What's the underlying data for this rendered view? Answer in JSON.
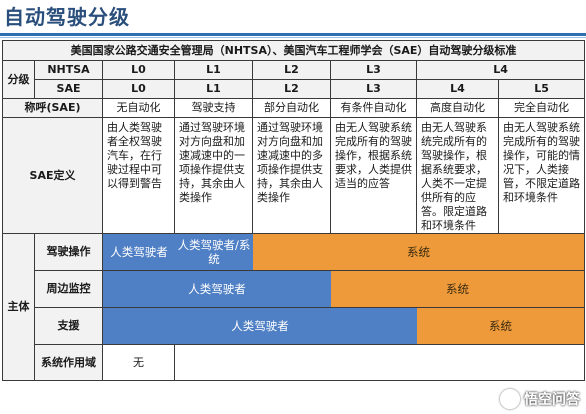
{
  "page": {
    "title": "自动驾驶分级"
  },
  "table": {
    "caption": "美国国家公路交通安全管理局（NHTSA）、美国汽车工程师学会（SAE）自动驾驶分级标准",
    "classification_label": "分级",
    "nhtsa_label": "NHTSA",
    "sae_label": "SAE",
    "nhtsa_levels": [
      "L0",
      "L1",
      "L2",
      "L3",
      "L4"
    ],
    "sae_levels": [
      "L0",
      "L1",
      "L2",
      "L3",
      "L4",
      "L5"
    ],
    "name_label": "称呼(SAE)",
    "names": [
      "无自动化",
      "驾驶支持",
      "部分自动化",
      "有条件自动化",
      "高度自动化",
      "完全自动化"
    ],
    "definition_label": "SAE定义",
    "definitions": [
      "由人类驾驶者全权驾驶汽车，在行驶过程中可以得到警告",
      "通过驾驶环境对方向盘和加速减速中的一项操作提供支持，其余由人类操作",
      "通过驾驶环境对方向盘和加速减速中的多项操作提供支持，其余由人类操作",
      "由无人驾驶系统完成所有的驾驶操作，根据系统要求，人类提供适当的应答",
      "由无人驾驶系统完成所有的驾驶操作，根据系统要求，人类不一定提供所有的应答。限定道路和环境条件",
      "由无人驾驶系统完成所有的驾驶操作，可能的情况下，人类接管，不限定道路和环境条件"
    ],
    "subject_label": "主体",
    "rows": {
      "driving": {
        "label": "驾驶操作",
        "human": "人类驾驶者",
        "shared": "人类驾驶者/系统",
        "system": "系统"
      },
      "monitoring": {
        "label": "周边监控",
        "human": "人类驾驶者",
        "system": "系统"
      },
      "support": {
        "label": "支援",
        "human": "人类驾驶者",
        "system": "系统"
      },
      "scope": {
        "label": "系统作用域",
        "none": "无"
      }
    },
    "colors": {
      "human": "#4f7fc4",
      "system": "#ee9a3a"
    }
  },
  "watermark": {
    "text": "悟空问答"
  }
}
